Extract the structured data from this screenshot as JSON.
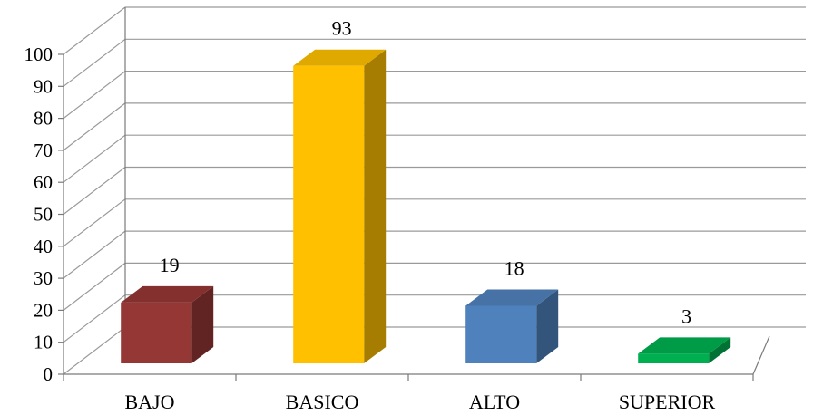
{
  "chart_data": {
    "type": "bar",
    "style": "3d-column",
    "categories": [
      "BAJO",
      "BASICO",
      "ALTO",
      "SUPERIOR"
    ],
    "values": [
      19,
      93,
      18,
      3
    ],
    "data_labels": [
      "19",
      "93",
      "18",
      "3"
    ],
    "colors": [
      "#953735",
      "#FFC000",
      "#4F81BD",
      "#00B050"
    ],
    "ylim": [
      0,
      100
    ],
    "yticks": [
      "0",
      "10",
      "20",
      "30",
      "40",
      "50",
      "60",
      "70",
      "80",
      "90",
      "100"
    ],
    "grid": true,
    "legend": "none"
  }
}
